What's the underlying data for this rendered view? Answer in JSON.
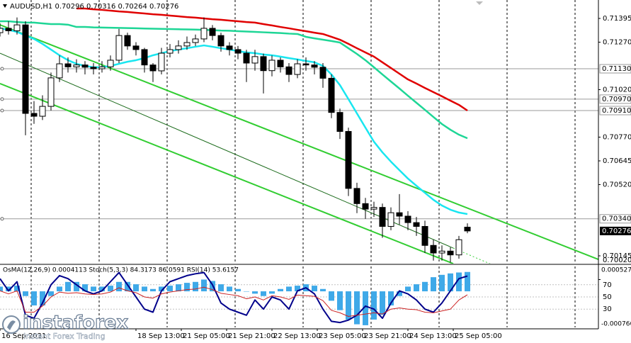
{
  "chart_data": {
    "type": "candlestick",
    "title": "AUDUSD,H1  0.70296 0.70316 0.70264 0.70276",
    "x": [
      0,
      3,
      6,
      9,
      12,
      15,
      18,
      21,
      24,
      27,
      30,
      33,
      36,
      39,
      42,
      45,
      48,
      51,
      54,
      57,
      60,
      63,
      66,
      69,
      72,
      75,
      78,
      81,
      84,
      87,
      90,
      93,
      96,
      99,
      102,
      105,
      108,
      111,
      114,
      117,
      120,
      123,
      126,
      129,
      132,
      135,
      138,
      141,
      144,
      147,
      150,
      153,
      156,
      159,
      162,
      165
    ],
    "open": [
      0.7132,
      0.71343,
      0.7133,
      0.71361,
      0.70895,
      0.7088,
      0.70932,
      0.71082,
      0.71156,
      0.7114,
      0.7115,
      0.71138,
      0.7113,
      0.7114,
      0.71175,
      0.71305,
      0.7125,
      0.71231,
      0.7115,
      0.71119,
      0.71212,
      0.71231,
      0.7125,
      0.71268,
      0.71287,
      0.71343,
      0.71305,
      0.7125,
      0.71231,
      0.71212,
      0.7116,
      0.71194,
      0.7112,
      0.71175,
      0.7114,
      0.711,
      0.71156,
      0.7115,
      0.71138,
      0.7108,
      0.709,
      0.708,
      0.705,
      0.7042,
      0.70391,
      0.704,
      0.703,
      0.70372,
      0.70354,
      0.7032,
      0.703,
      0.702,
      0.7016,
      0.7017,
      0.7015,
      0.70296
    ],
    "high": [
      0.7137,
      0.7138,
      0.714,
      0.7138,
      0.7096,
      0.7099,
      0.7111,
      0.712,
      0.7119,
      0.7118,
      0.7117,
      0.7116,
      0.7117,
      0.712,
      0.7134,
      0.7132,
      0.7127,
      0.7124,
      0.7116,
      0.7124,
      0.7126,
      0.7128,
      0.713,
      0.7131,
      0.714,
      0.7136,
      0.7132,
      0.7127,
      0.7125,
      0.7123,
      0.7123,
      0.7121,
      0.712,
      0.7119,
      0.7116,
      0.7118,
      0.7119,
      0.7117,
      0.7116,
      0.711,
      0.7092,
      0.7082,
      0.7053,
      0.7045,
      0.7043,
      0.7042,
      0.704,
      0.7047,
      0.7038,
      0.7035,
      0.7033,
      0.7023,
      0.702,
      0.7019,
      0.7025,
      0.70316
    ],
    "low": [
      0.713,
      0.7131,
      0.7131,
      0.7078,
      0.7084,
      0.7086,
      0.7091,
      0.7106,
      0.7111,
      0.7111,
      0.711,
      0.711,
      0.7111,
      0.7112,
      0.7116,
      0.7123,
      0.712,
      0.7111,
      0.7106,
      0.711,
      0.7119,
      0.7121,
      0.7123,
      0.7125,
      0.7127,
      0.7128,
      0.7122,
      0.712,
      0.7118,
      0.7106,
      0.7112,
      0.71,
      0.7109,
      0.7111,
      0.7106,
      0.7108,
      0.7112,
      0.711,
      0.7103,
      0.7087,
      0.7076,
      0.7046,
      0.7037,
      0.7034,
      0.7035,
      0.7024,
      0.7028,
      0.7031,
      0.7028,
      0.7025,
      0.7016,
      0.7012,
      0.7012,
      0.7011,
      0.7013,
      0.70264
    ],
    "close": [
      0.71343,
      0.7133,
      0.71361,
      0.70895,
      0.7088,
      0.70932,
      0.71082,
      0.71156,
      0.7114,
      0.7115,
      0.71138,
      0.7113,
      0.7114,
      0.71175,
      0.71305,
      0.7125,
      0.71231,
      0.7115,
      0.71119,
      0.71212,
      0.71231,
      0.7125,
      0.71268,
      0.71287,
      0.71343,
      0.71305,
      0.7125,
      0.71231,
      0.71212,
      0.7116,
      0.71194,
      0.7112,
      0.71175,
      0.7114,
      0.711,
      0.71156,
      0.7115,
      0.71138,
      0.7108,
      0.709,
      0.708,
      0.705,
      0.7042,
      0.70391,
      0.704,
      0.703,
      0.70372,
      0.70354,
      0.7032,
      0.703,
      0.702,
      0.7016,
      0.7017,
      0.7015,
      0.7023,
      0.70276
    ],
    "xlim": [
      0,
      211.25
    ],
    "ylim": [
      0.70104,
      0.71492
    ],
    "yticks": [
      0.71395,
      {
        "value": 0.7127,
        "label": "0.71270"
      },
      {
        "value": 0.7102,
        "label": "0.71020"
      },
      {
        "value": 0.7077,
        "label": "0.70770"
      },
      0.70645,
      {
        "value": 0.7052,
        "label": "0.70520"
      },
      0.70145,
      {
        "value": 0.7002,
        "label": "0.70020"
      }
    ],
    "levels": [
      {
        "value": 0.7113,
        "label": "0.71130"
      },
      {
        "value": 0.7097,
        "label": "0.70970"
      },
      {
        "value": 0.7091,
        "label": "0.70910"
      },
      {
        "value": 0.7034,
        "label": "0.70340"
      }
    ],
    "xticks": [
      {
        "value": 0,
        "label": "16 Sep 2021"
      },
      {
        "value": 48,
        "label": "18 Sep 13:00"
      },
      {
        "value": 64,
        "label": "21 Sep 05:00"
      },
      {
        "value": 80,
        "label": "21 Sep 21:00"
      },
      {
        "value": 96,
        "label": "22 Sep 13:00"
      },
      {
        "value": 112,
        "label": "23 Sep 05:00"
      },
      {
        "value": 128,
        "label": "23 Sep 21:00"
      },
      {
        "value": 144,
        "label": "24 Sep 13:00"
      },
      {
        "value": 160,
        "label": "25 Sep 05:00"
      }
    ],
    "day_separators": [
      11,
      35,
      59,
      83,
      107,
      131,
      155,
      179,
      203
    ],
    "moving_averages": [
      {
        "color": "#e00000",
        "values": [
          null,
          null,
          null,
          null,
          null,
          null,
          null,
          null,
          null,
          0.71447,
          0.71447,
          0.71443,
          0.7144,
          0.71436,
          0.71432,
          0.71429,
          0.71425,
          0.71421,
          0.71417,
          0.71414,
          0.7141,
          0.71406,
          0.71402,
          0.71399,
          0.71395,
          0.71391,
          0.71388,
          0.71384,
          0.7138,
          0.71376,
          0.71373,
          0.71365,
          0.71358,
          0.7135,
          0.71343,
          0.71335,
          0.71328,
          0.7132,
          0.71313,
          0.71298,
          0.71283,
          0.71261,
          0.71238,
          0.71216,
          0.71194,
          0.71164,
          0.71134,
          0.71104,
          0.71074,
          0.71052,
          0.71029,
          0.71007,
          0.70985,
          0.70962,
          0.7094,
          0.7091
        ]
      },
      {
        "color": "#1ed696",
        "values": [
          0.7138,
          0.7138,
          0.71376,
          0.71373,
          0.71373,
          0.71369,
          0.71365,
          0.71365,
          0.71362,
          0.7135,
          0.7135,
          0.71348,
          0.71347,
          0.71346,
          0.71345,
          0.71344,
          0.71343,
          0.71342,
          0.71341,
          0.7134,
          0.71339,
          0.71338,
          0.71337,
          0.71336,
          0.71335,
          0.71333,
          0.71331,
          0.7133,
          0.71328,
          0.71326,
          0.71324,
          0.71322,
          0.7132,
          0.71318,
          0.71315,
          0.71313,
          0.71298,
          0.7129,
          0.71283,
          0.71276,
          0.71268,
          0.71238,
          0.71208,
          0.71175,
          0.71138,
          0.711,
          0.71063,
          0.71026,
          0.70988,
          0.70951,
          0.70914,
          0.70876,
          0.70839,
          0.70809,
          0.70783,
          0.70764
        ]
      },
      {
        "color": "#19e6f0",
        "values": [
          0.71343,
          0.71335,
          0.71324,
          0.71305,
          0.71287,
          0.71261,
          0.71231,
          0.71201,
          0.71175,
          0.71156,
          0.71145,
          0.71138,
          0.71138,
          0.71145,
          0.71156,
          0.71167,
          0.71175,
          0.71186,
          0.71201,
          0.71212,
          0.71223,
          0.71231,
          0.71238,
          0.71246,
          0.71253,
          0.71246,
          0.71238,
          0.71231,
          0.71223,
          0.71216,
          0.71212,
          0.71205,
          0.71201,
          0.71194,
          0.71186,
          0.71179,
          0.71171,
          0.71164,
          0.71145,
          0.711,
          0.71044,
          0.7097,
          0.70895,
          0.7082,
          0.70746,
          0.7069,
          0.70641,
          0.70596,
          0.70552,
          0.70514,
          0.70477,
          0.7044,
          0.7041,
          0.70388,
          0.70373,
          0.70365
        ]
      }
    ],
    "trendlines": [
      {
        "color": "#32cd32",
        "width": 2,
        "dashed": false,
        "x": [
          0,
          211.25
        ],
        "y": [
          0.71361,
          0.70126
        ]
      },
      {
        "color": "#32cd32",
        "width": 2,
        "dashed": false,
        "x": [
          0,
          160
        ],
        "y": [
          0.71052,
          0.70104
        ]
      },
      {
        "color": "#1a6a1a",
        "width": 1,
        "dashed": false,
        "x": [
          0,
          160
        ],
        "y": [
          0.71212,
          0.70186
        ]
      },
      {
        "color": "#32cd32",
        "width": 1,
        "dashed": true,
        "x": [
          160,
          211.25
        ],
        "y": [
          0.70186,
          0.69859
        ]
      }
    ],
    "oscillator": {
      "title": "OsMA(12,26,9) 0.0004113  Stoch(5,3,3) 84.3173 86.0591  RSI(14) 53.6157",
      "osma": {
        "color": "#3fa9e8",
        "ylim": [
          -0.0007662,
          0.0005278
        ],
        "ticks": [
          0.0005278,
          -0.0007662
        ],
        "values": [
          0.0001,
          0.0001,
          0.00012,
          -0.0001,
          -0.0003,
          -0.0003,
          -0.0001,
          0.0001,
          0.0002,
          0.0002,
          0.00015,
          0.0001,
          0.0001,
          0.00012,
          0.0002,
          0.0002,
          0.00015,
          0.0001,
          5e-05,
          0.0001,
          0.00012,
          0.00015,
          0.00018,
          0.0002,
          0.00025,
          0.00022,
          0.00015,
          0.0001,
          5e-05,
          0,
          -5e-05,
          -0.0001,
          -5e-05,
          5e-05,
          0.0001,
          0.00012,
          0.00015,
          0.00012,
          5e-05,
          -0.0002,
          -0.0004,
          -0.0006,
          -0.0007,
          -0.00072,
          -0.0006,
          -0.0005,
          -0.0003,
          -0.0001,
          0.0001,
          0.00015,
          0.0002,
          0.0003,
          0.00035,
          0.00038,
          0.0004,
          0.0004113
        ]
      },
      "ylim": [
        0,
        100
      ],
      "yticks": [
        70,
        50,
        30
      ],
      "lines": [
        {
          "color": "#00008b",
          "width": 2,
          "values": [
            80,
            60,
            75,
            20,
            15,
            40,
            70,
            85,
            80,
            70,
            60,
            55,
            60,
            75,
            90,
            70,
            50,
            30,
            25,
            60,
            75,
            80,
            85,
            88,
            90,
            70,
            40,
            30,
            25,
            20,
            45,
            30,
            50,
            45,
            30,
            60,
            65,
            55,
            30,
            10,
            8,
            12,
            20,
            35,
            30,
            15,
            40,
            60,
            55,
            45,
            30,
            25,
            40,
            60,
            80,
            84.3173
          ]
        },
        {
          "color": "#cc2222",
          "width": 1,
          "values": [
            60,
            55,
            60,
            25,
            25,
            35,
            50,
            58,
            56,
            57,
            55,
            54,
            55,
            58,
            65,
            60,
            57,
            50,
            48,
            55,
            58,
            60,
            62,
            63,
            66,
            62,
            56,
            54,
            52,
            47,
            50,
            45,
            52,
            50,
            46,
            53,
            52,
            51,
            44,
            28,
            24,
            18,
            20,
            22,
            24,
            22,
            30,
            32,
            30,
            29,
            25,
            24,
            27,
            30,
            45,
            53.6157
          ]
        }
      ]
    },
    "watermark": {
      "name": "instaforex",
      "tagline": "Instant Forex Trading"
    }
  }
}
